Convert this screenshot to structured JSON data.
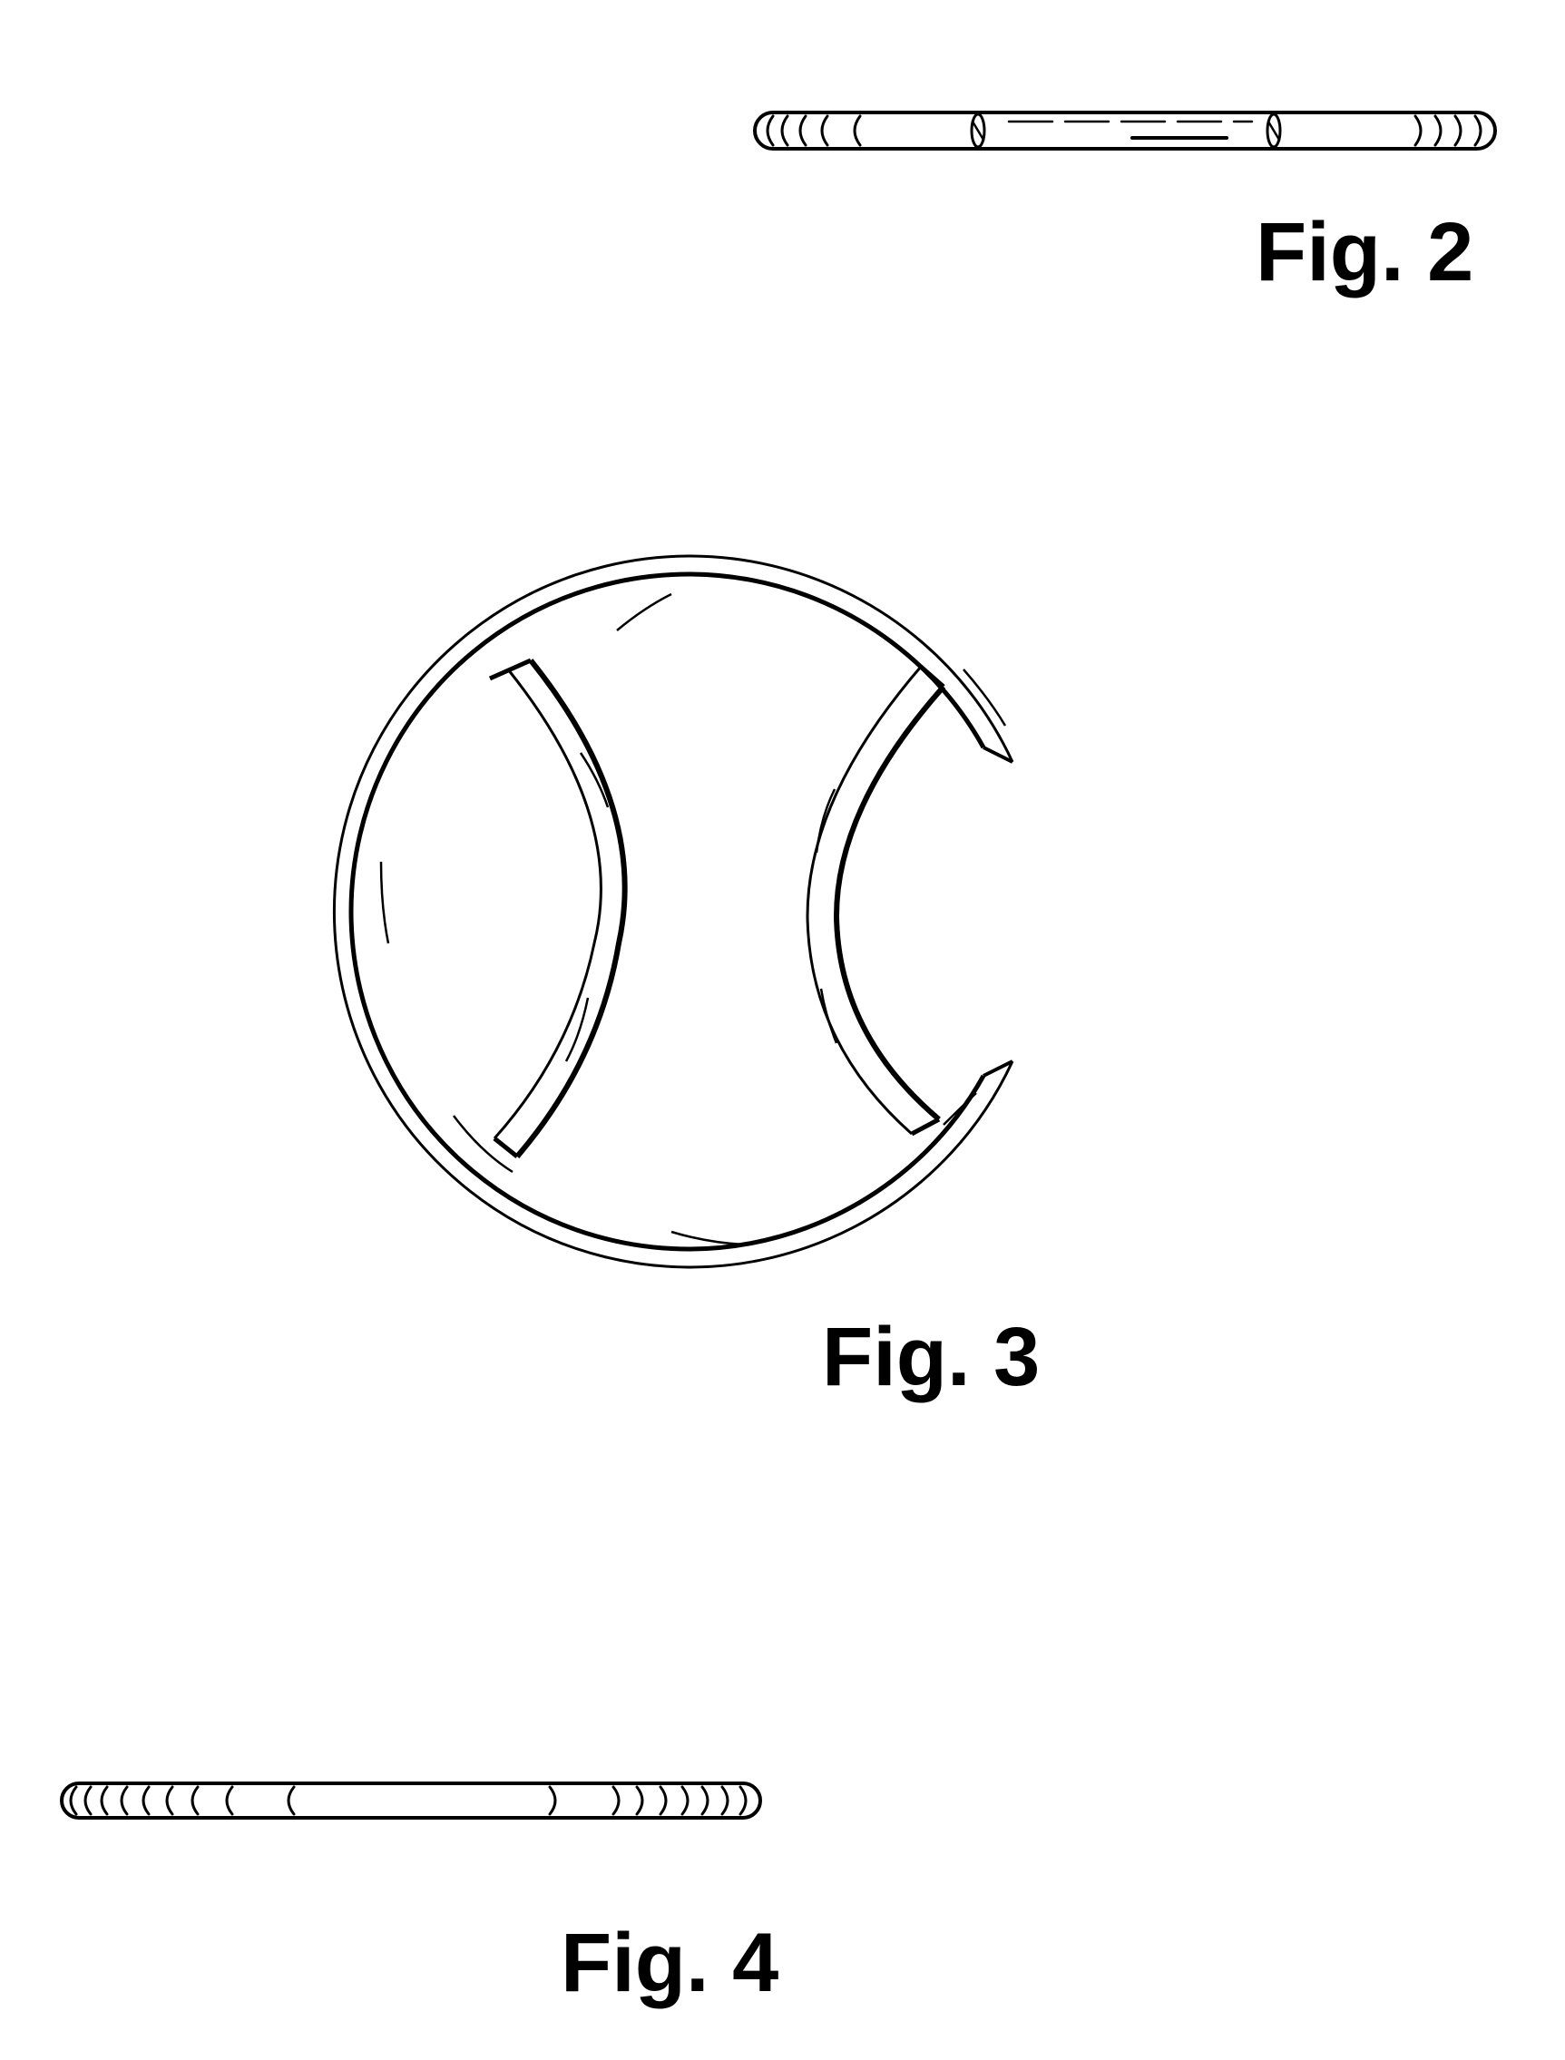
{
  "figures": {
    "fig2": {
      "label": "Fig. 2"
    },
    "fig3": {
      "label": "Fig. 3"
    },
    "fig4": {
      "label": "Fig. 4"
    }
  },
  "colors": {
    "line": "#000000",
    "background": "#ffffff"
  }
}
